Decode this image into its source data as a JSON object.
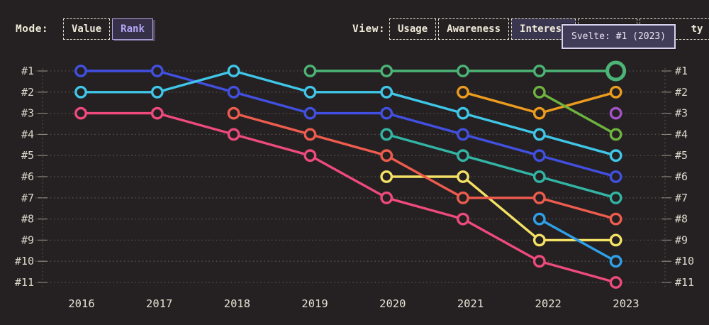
{
  "header": {
    "mode": {
      "label": "Mode:",
      "options": [
        {
          "label": "Value",
          "active": false
        },
        {
          "label": "Rank",
          "active": true
        }
      ]
    },
    "view": {
      "label": "View:",
      "options": [
        {
          "label": "Usage",
          "active": false
        },
        {
          "label": "Awareness",
          "active": false
        },
        {
          "label": "Interest",
          "active": true
        },
        {
          "label": "",
          "active": false
        },
        {
          "label": "ty",
          "active": false
        }
      ]
    },
    "tooltip": {
      "text": "Svelte: #1 (2023)"
    }
  },
  "chart_data": {
    "type": "line",
    "title": "",
    "x_categories": [
      "2016",
      "2017",
      "2018",
      "2019",
      "2020",
      "2021",
      "2022",
      "2023"
    ],
    "y_axis_labels": [
      "#1",
      "#2",
      "#3",
      "#4",
      "#5",
      "#6",
      "#7",
      "#8",
      "#9",
      "#10",
      "#11"
    ],
    "y_axis_inverted_rank": true,
    "grid": "dotted",
    "series": [
      {
        "name": "blue",
        "color": "#4150e0",
        "start_year": "2016",
        "ranks": [
          1,
          1,
          2,
          3,
          3,
          4,
          5,
          6
        ]
      },
      {
        "name": "cyan",
        "color": "#3fc6e8",
        "start_year": "2016",
        "ranks": [
          2,
          2,
          1,
          2,
          2,
          3,
          4,
          5
        ]
      },
      {
        "name": "magenta",
        "color": "#ee4a7d",
        "start_year": "2016",
        "ranks": [
          3,
          3,
          4,
          5,
          7,
          8,
          10,
          11
        ]
      },
      {
        "name": "yellow",
        "color": "#f4e165",
        "start_year": "2020",
        "ranks": [
          6,
          6,
          9,
          9
        ]
      },
      {
        "name": "salmon",
        "color": "#ee5c4e",
        "start_year": "2018",
        "ranks": [
          3,
          4,
          5,
          7,
          7,
          8
        ]
      },
      {
        "name": "teal",
        "color": "#32b5a4",
        "start_year": "2020",
        "ranks": [
          4,
          5,
          6,
          7
        ]
      },
      {
        "name": "amber",
        "color": "#eb9c1f",
        "start_year": "2021",
        "ranks": [
          2,
          3,
          2
        ]
      },
      {
        "name": "lime",
        "color": "#6fb33f",
        "start_year": "2022",
        "ranks": [
          2,
          4
        ]
      },
      {
        "name": "sky",
        "color": "#2fa0e8",
        "start_year": "2022",
        "ranks": [
          8,
          10
        ]
      },
      {
        "name": "purple",
        "color": "#a253c7",
        "start_year": "2023",
        "ranks": [
          3
        ]
      },
      {
        "name": "svelte",
        "color": "#4cb475",
        "start_year": "2019",
        "ranks": [
          1,
          1,
          1,
          1,
          1
        ]
      }
    ],
    "highlight": {
      "series": "svelte",
      "year": "2023",
      "rank": 1,
      "label": "Svelte: #1 (2023)"
    },
    "colors": {
      "background": "#252122",
      "grid_dots": "#55504d",
      "axis_tick": "#8d867e",
      "axis_label": "#ddd7cb",
      "year_label": "#e6e0d4"
    }
  }
}
